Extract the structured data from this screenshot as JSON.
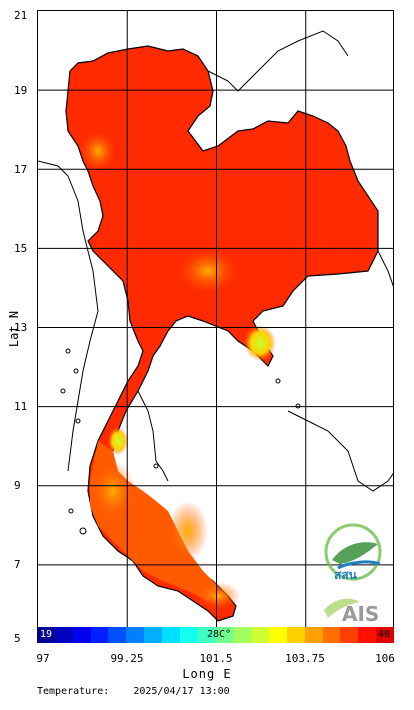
{
  "map": {
    "y_ticks": [
      "21",
      "19",
      "17",
      "15",
      "13",
      "11",
      "9",
      "7",
      "5"
    ],
    "x_ticks": [
      "97",
      "99.25",
      "101.5",
      "103.75",
      "106"
    ],
    "y_label": "Lat N",
    "x_label": "Long E",
    "lat_range": [
      5,
      21
    ],
    "lon_range": [
      97,
      106
    ],
    "grid": true,
    "grid_color": "#000000",
    "land_color": "#ff2200"
  },
  "colorbar": {
    "min_label": "19",
    "mid_label": "28C°",
    "max_label": "40",
    "colors": [
      "#00008f",
      "#0000bf",
      "#0000ef",
      "#0020ff",
      "#0050ff",
      "#0080ff",
      "#00b0ff",
      "#00dfff",
      "#10ffef",
      "#40ffbf",
      "#70ff8f",
      "#a0ff5f",
      "#cfff30",
      "#ffff00",
      "#ffd000",
      "#ffa000",
      "#ff7000",
      "#ff4000",
      "#ff1000",
      "#df0000"
    ]
  },
  "footer": {
    "label": "Temperature:",
    "timestamp": "2025/04/17 13:00"
  },
  "logos": {
    "ssn_text": "สสน",
    "ais_text": "AIS"
  }
}
